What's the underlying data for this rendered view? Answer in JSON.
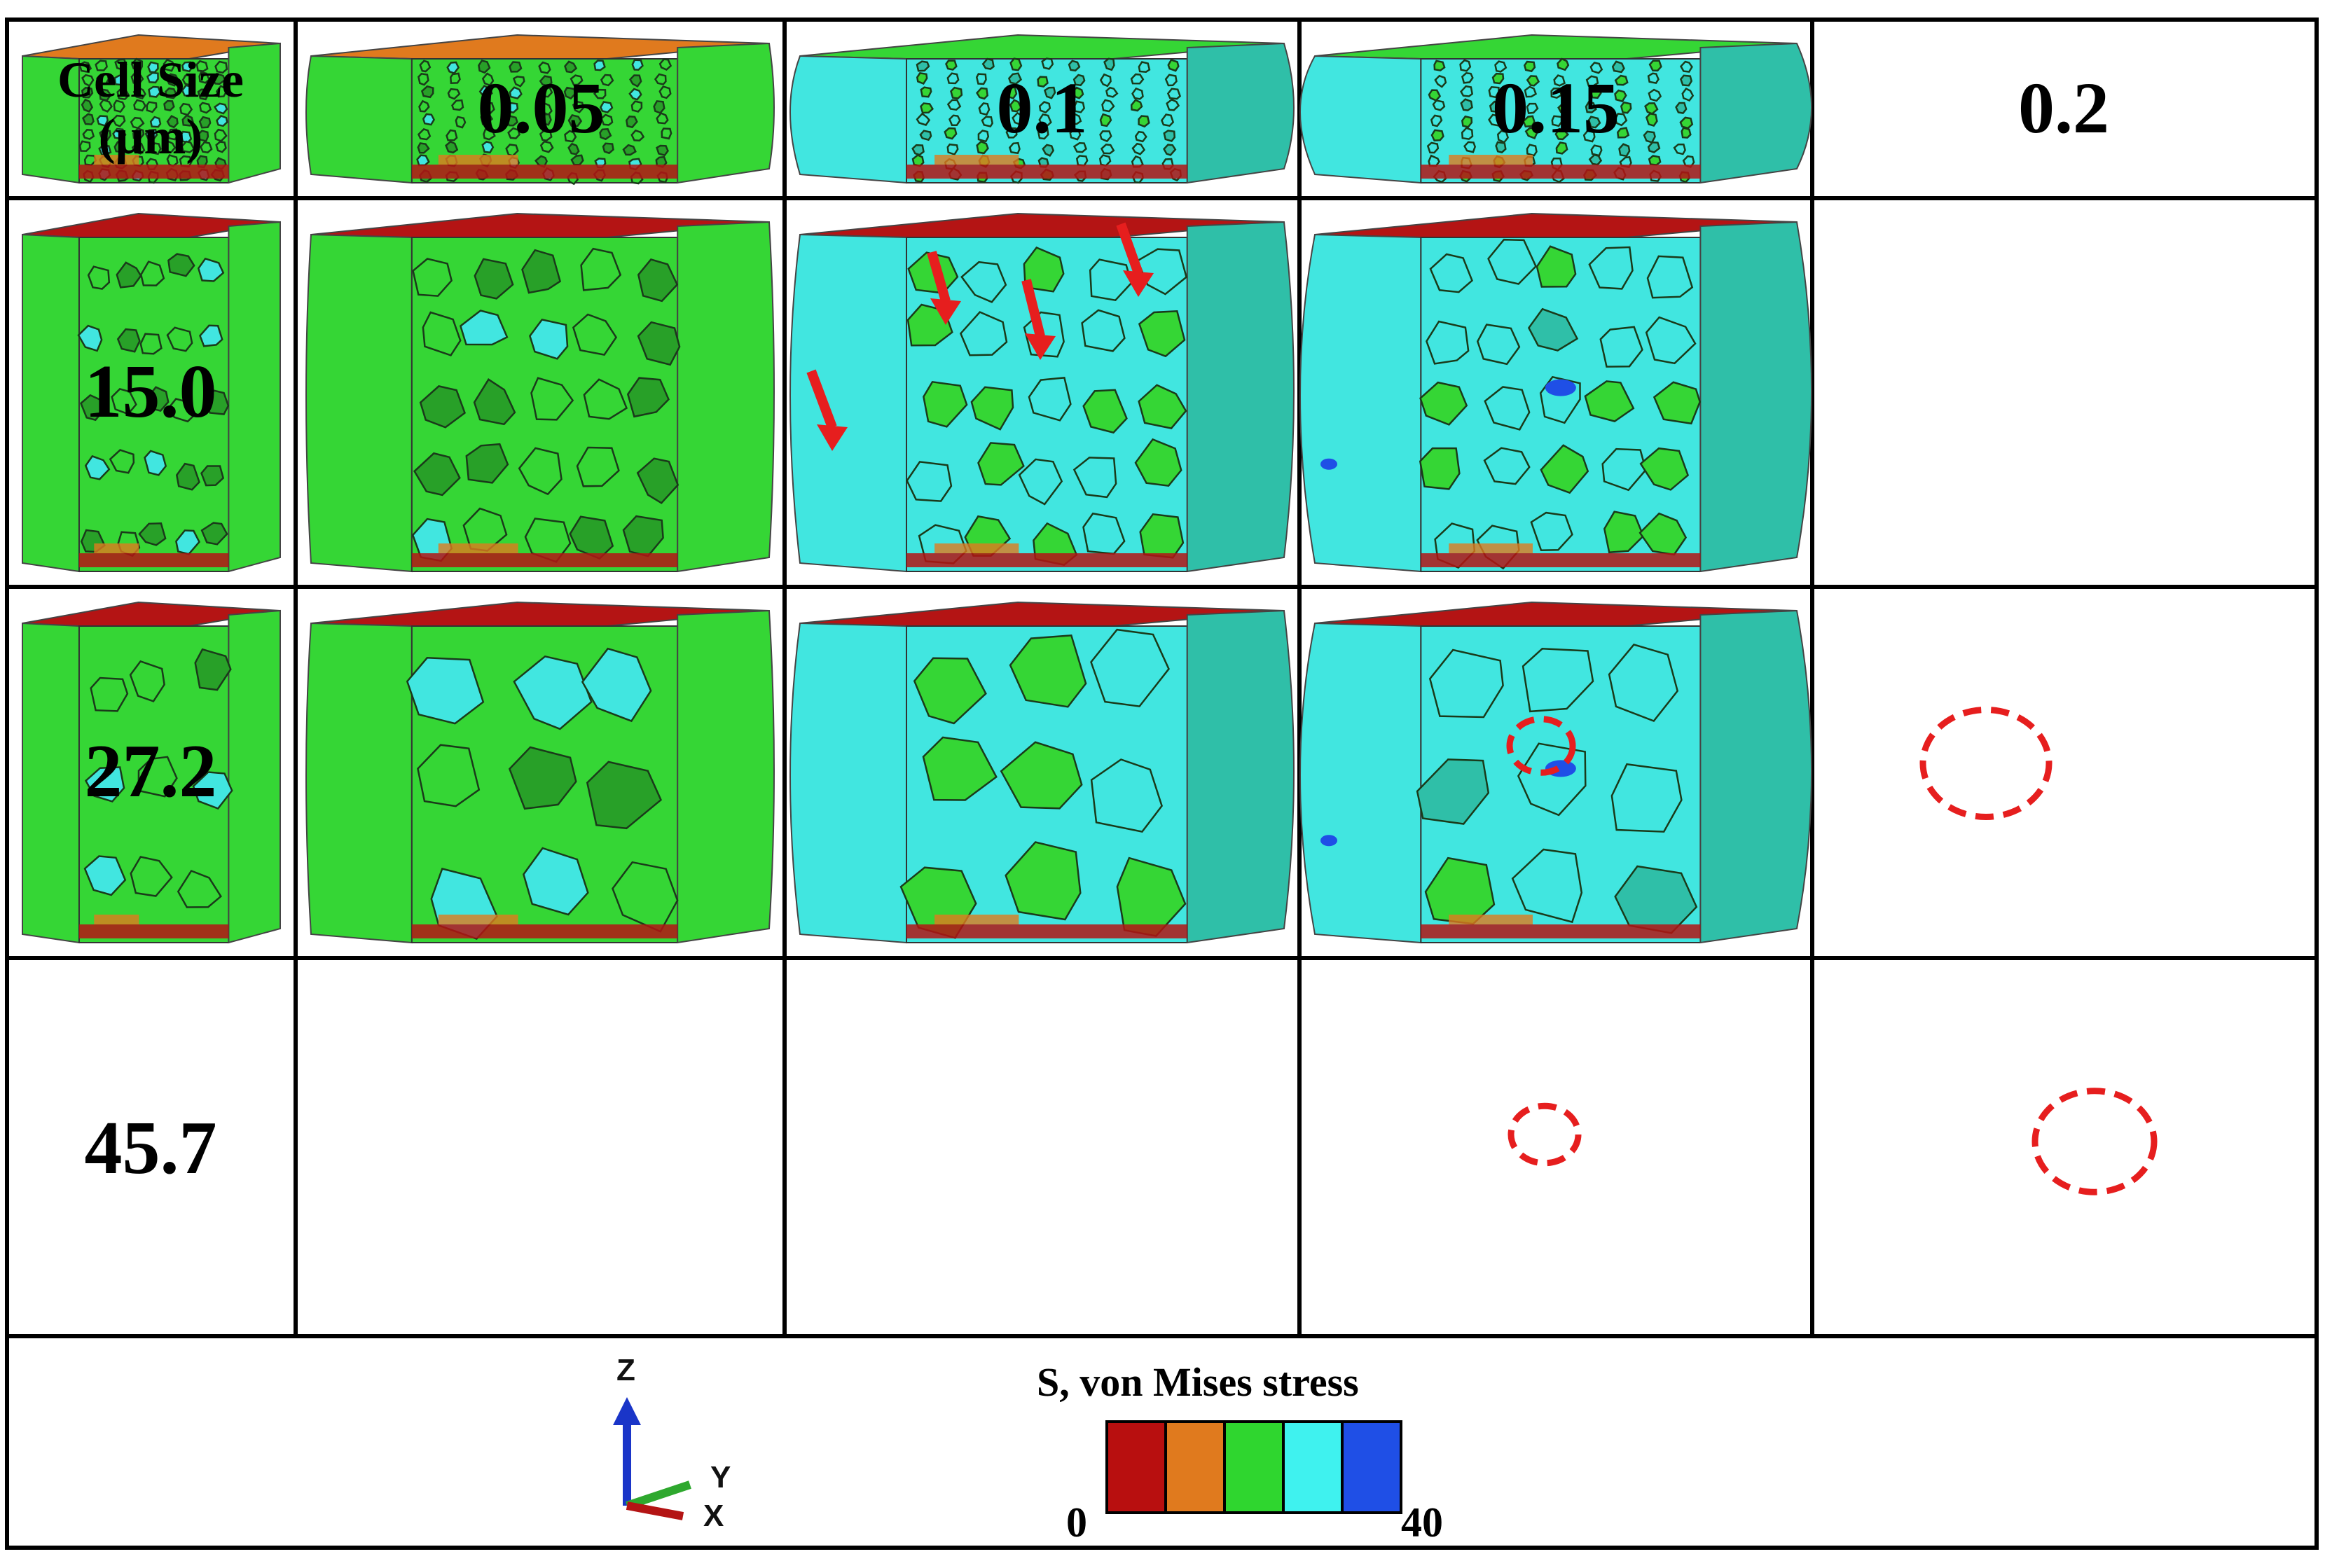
{
  "table": {
    "corner_label_line1": "Cell Size",
    "corner_label_line2": "(μm)",
    "columns": [
      "0.05",
      "0.1",
      "0.15",
      "0.2"
    ],
    "rows": [
      "15.0",
      "27.2",
      "45.7"
    ]
  },
  "legend": {
    "title": "S, von Mises stress",
    "min": "0",
    "max": "40",
    "colors": [
      "#b80f0f",
      "#e07a1e",
      "#2fd62f",
      "#3ff2ef",
      "#1f4fe6"
    ]
  },
  "axes": {
    "z": "Z",
    "y": "Y",
    "x": "X"
  },
  "colors": {
    "green": "#35d635",
    "dark_green": "#28a028",
    "cyan": "#41e6e0",
    "teal": "#2fbfa8",
    "red": "#b41414",
    "orange": "#e07a1e",
    "blue": "#1f4fe6",
    "annotation_red": "#e61e1e"
  }
}
